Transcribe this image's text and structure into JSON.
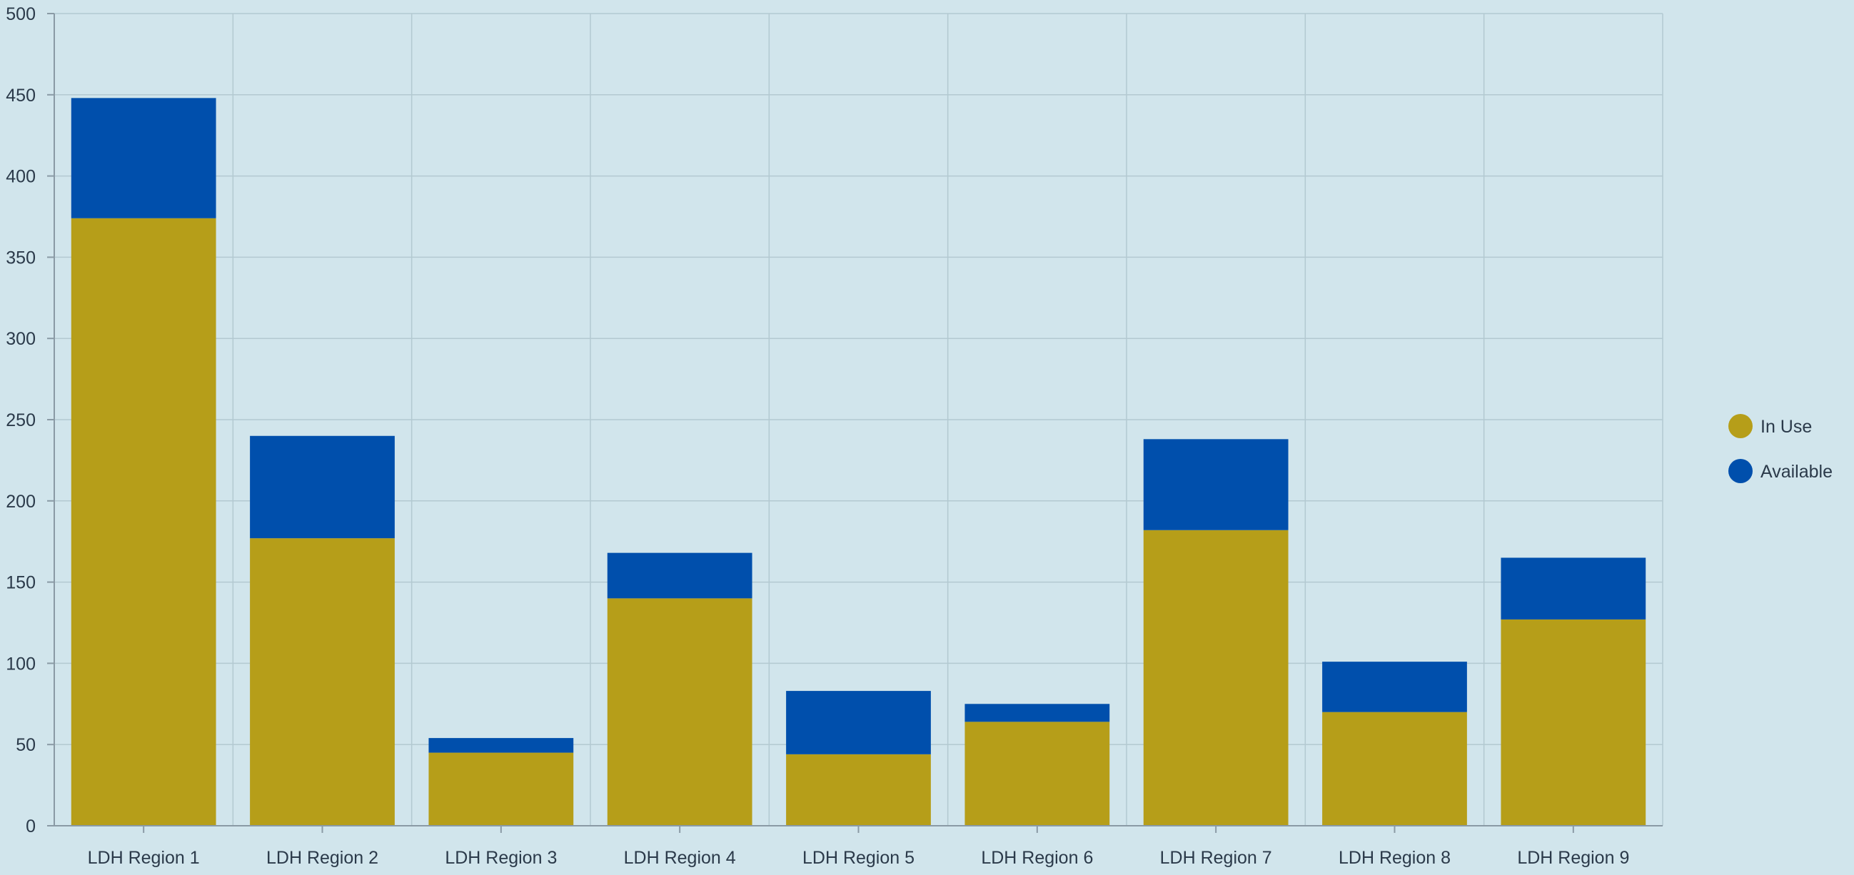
{
  "chart_data": {
    "type": "bar",
    "stacked": true,
    "title": "",
    "xlabel": "",
    "ylabel": "",
    "categories": [
      "LDH Region 1",
      "LDH Region 2",
      "LDH Region 3",
      "LDH Region 4",
      "LDH Region 5",
      "LDH Region 6",
      "LDH Region 7",
      "LDH Region 8",
      "LDH Region 9"
    ],
    "series": [
      {
        "name": "In Use",
        "color": "#b69e19",
        "values": [
          374,
          177,
          45,
          140,
          44,
          64,
          182,
          70,
          127
        ]
      },
      {
        "name": "Available",
        "color": "#004fac",
        "values": [
          74,
          63,
          9,
          28,
          39,
          11,
          56,
          31,
          38
        ]
      }
    ],
    "ylim": [
      0,
      500
    ],
    "yticks": [
      0,
      50,
      100,
      150,
      200,
      250,
      300,
      350,
      400,
      450,
      500
    ],
    "grid": true,
    "legend_position": "right"
  }
}
